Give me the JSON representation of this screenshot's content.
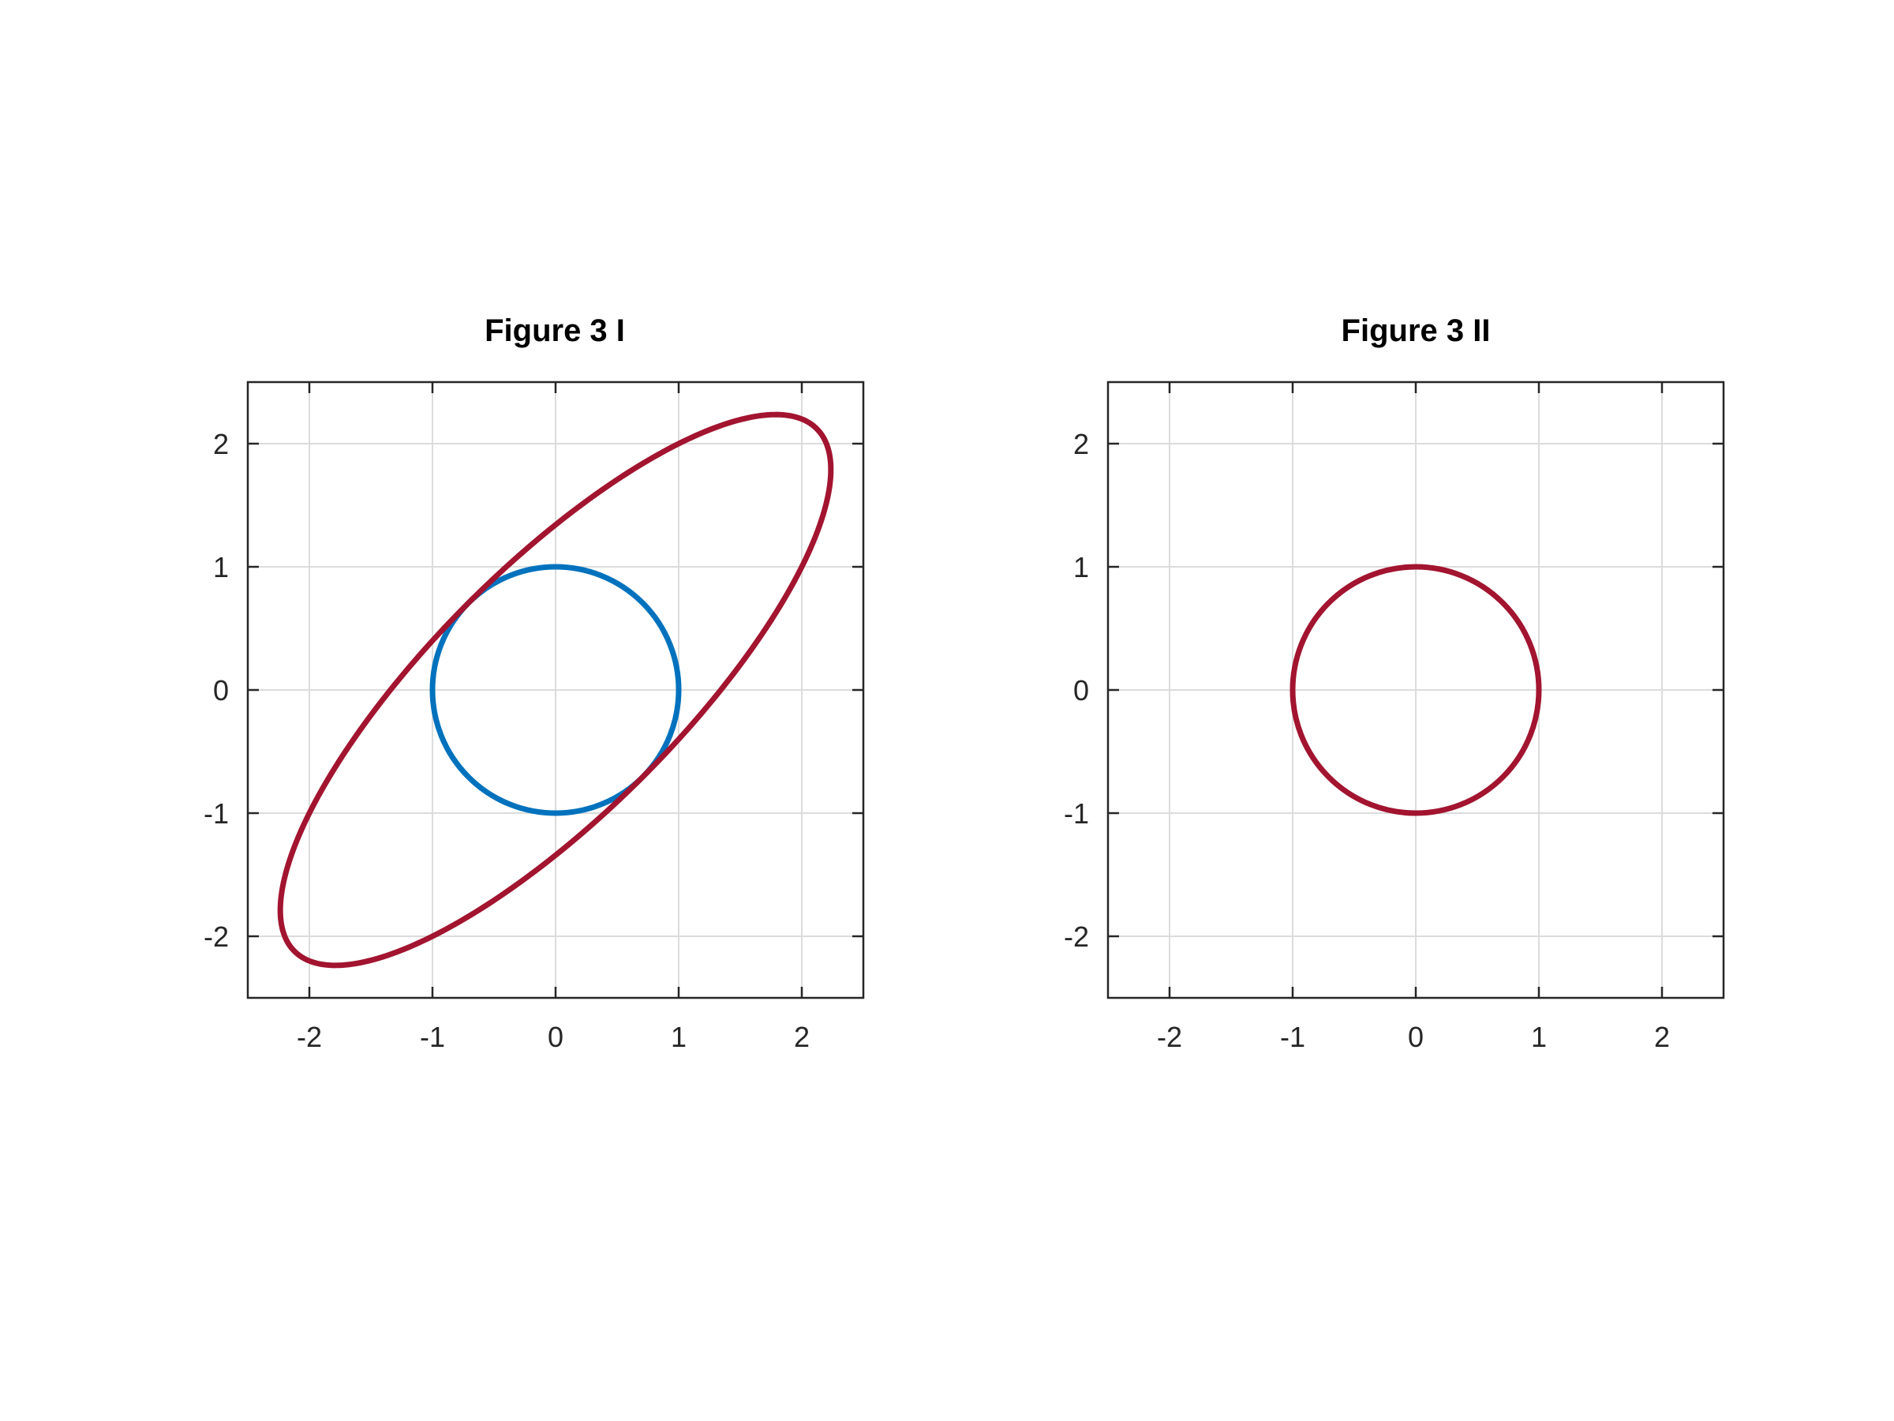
{
  "chart_data": [
    {
      "type": "line",
      "title": "Figure 3 I",
      "xlabel": "",
      "ylabel": "",
      "xlim": [
        -2.5,
        2.5
      ],
      "ylim": [
        -2.5,
        2.5
      ],
      "xticks": [
        "-2",
        "-1",
        "0",
        "1",
        "2"
      ],
      "yticks": [
        "2",
        "1",
        "0",
        "-1",
        "-2"
      ],
      "xtick_values": [
        -2,
        -1,
        0,
        1,
        2
      ],
      "ytick_values": [
        2,
        1,
        0,
        -1,
        -2
      ],
      "grid": true,
      "series": [
        {
          "shape": "circle",
          "center": [
            0,
            0
          ],
          "radius": 1,
          "color": "#0072BD"
        },
        {
          "shape": "ellipse",
          "center": [
            0,
            0
          ],
          "matrix": [
            [
              2,
              1
            ],
            [
              1,
              2
            ]
          ],
          "extent_x": [
            -2.26,
            2.26
          ],
          "extent_y": [
            -2.26,
            2.26
          ],
          "color": "#A2142F"
        }
      ]
    },
    {
      "type": "line",
      "title": "Figure 3 II",
      "xlabel": "",
      "ylabel": "",
      "xlim": [
        -2.5,
        2.5
      ],
      "ylim": [
        -2.5,
        2.5
      ],
      "xticks": [
        "-2",
        "-1",
        "0",
        "1",
        "2"
      ],
      "yticks": [
        "2",
        "1",
        "0",
        "-1",
        "-2"
      ],
      "xtick_values": [
        -2,
        -1,
        0,
        1,
        2
      ],
      "ytick_values": [
        2,
        1,
        0,
        -1,
        -2
      ],
      "grid": true,
      "series": [
        {
          "shape": "circle",
          "center": [
            0,
            0
          ],
          "radius": 1,
          "color": "#A2142F"
        }
      ]
    }
  ],
  "style": {
    "grid_color": "#dcdcdc",
    "axis_color": "#262626",
    "background": "#ffffff"
  }
}
